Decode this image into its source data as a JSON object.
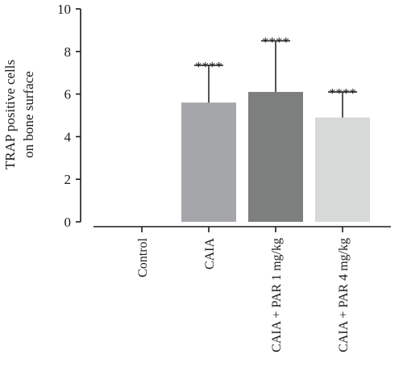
{
  "chart_data": {
    "type": "bar",
    "categories": [
      "Control",
      "CAIA",
      "CAIA + PAR 1 mg/kg",
      "CAIA + PAR 4 mg/kg"
    ],
    "values": [
      0,
      5.6,
      6.1,
      4.9
    ],
    "errors": [
      0,
      1.75,
      2.4,
      1.2
    ],
    "significance": [
      "",
      "****",
      "****",
      "****"
    ],
    "colors": [
      "#ffffff",
      "#a5a6aa",
      "#7d7e7e",
      "#d7d8d8"
    ],
    "ylabel_lines": [
      "TRAP positive cells",
      "on bone surface"
    ],
    "ylim": [
      0,
      10
    ],
    "yticks": [
      "0",
      "2",
      "4",
      "6",
      "8",
      "10"
    ],
    "grid": false
  }
}
